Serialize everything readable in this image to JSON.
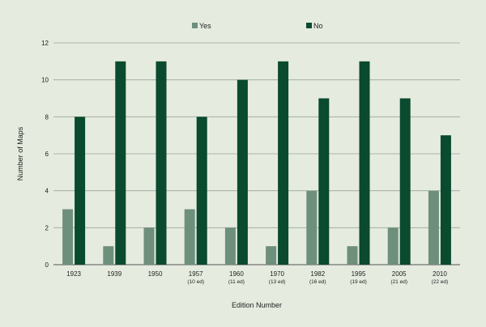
{
  "chart_data": {
    "type": "bar",
    "categories": [
      "1923",
      "1939",
      "1950",
      "1957",
      "1960",
      "1970",
      "1982",
      "1995",
      "2005",
      "2010"
    ],
    "category_sublabels": [
      "",
      "",
      "",
      "(10 ed)",
      "(11 ed)",
      "(13 ed)",
      "(16 ed)",
      "(19 ed)",
      "(21 ed)",
      "(22 ed)"
    ],
    "series": [
      {
        "name": "Yes",
        "color": "#6e8f7c",
        "values": [
          3,
          1,
          2,
          3,
          2,
          1,
          4,
          1,
          2,
          4
        ]
      },
      {
        "name": "No",
        "color": "#0a4a2f",
        "values": [
          8,
          11,
          11,
          8,
          10,
          11,
          9,
          11,
          9,
          7
        ]
      }
    ],
    "xlabel": "Edition Number",
    "ylabel": "Number of Maps",
    "ylim": [
      0,
      12
    ],
    "yticks": [
      "0",
      "2",
      "4",
      "6",
      "8",
      "10",
      "12"
    ],
    "grid": true,
    "legend_position": "top"
  }
}
